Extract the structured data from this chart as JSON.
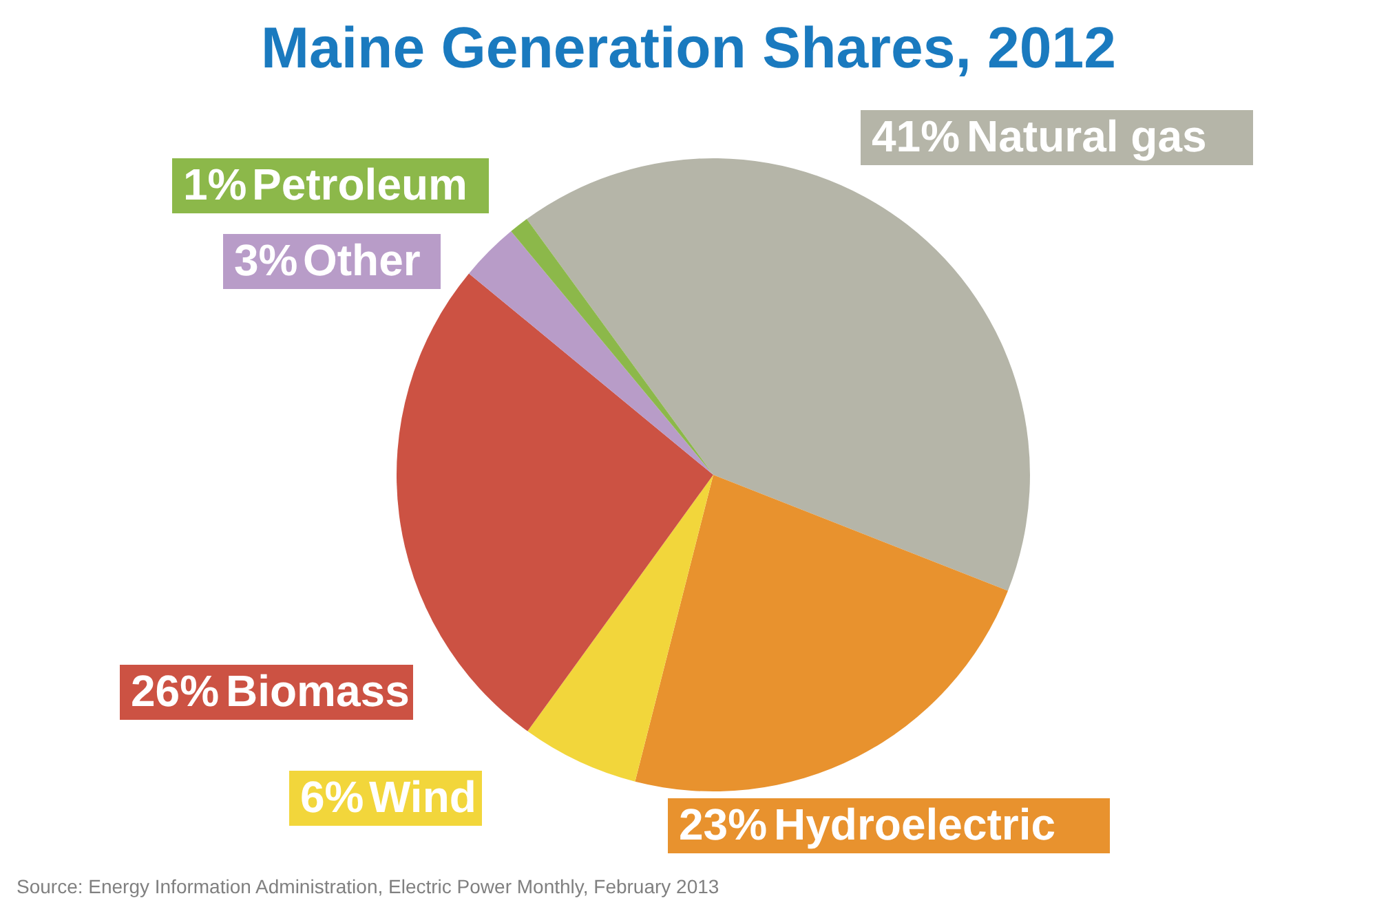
{
  "chart_data": {
    "type": "pie",
    "title": "Maine Generation Shares, 2012",
    "categories": [
      "Natural gas",
      "Hydroelectric",
      "Wind",
      "Biomass",
      "Other",
      "Petroleum"
    ],
    "values": [
      41,
      23,
      6,
      26,
      3,
      1
    ],
    "colors": [
      "#b5b5a8",
      "#e8922e",
      "#f2d63b",
      "#cc5243",
      "#b89cc8",
      "#8cb84a"
    ],
    "value_labels": [
      "41%",
      "23%",
      "6%",
      "26%",
      "3%",
      "1%"
    ],
    "annotations": [
      "Source: Energy Information Administration, Electric Power Monthly, February 2013"
    ]
  }
}
